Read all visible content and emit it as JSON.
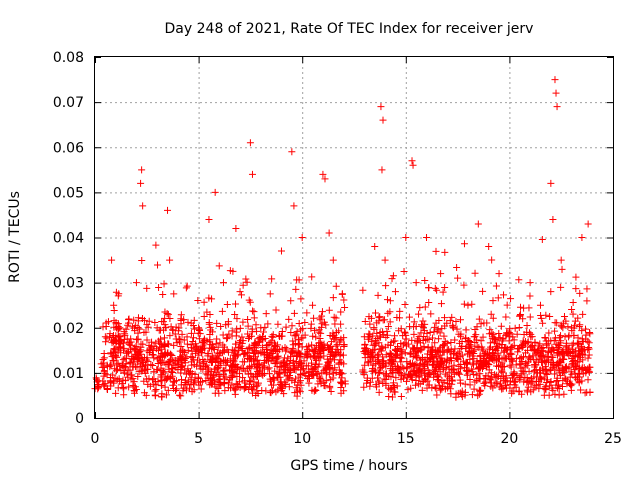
{
  "chart_data": {
    "type": "scatter",
    "title": "Day 248 of 2021, Rate Of TEC Index for receiver jerv",
    "xlabel": "GPS time / hours",
    "ylabel": "ROTI / TECUs",
    "xlim": [
      0,
      25
    ],
    "ylim": [
      0,
      0.08
    ],
    "x_ticks": [
      0,
      5,
      10,
      15,
      20,
      25
    ],
    "x_tick_labels": [
      "0",
      "5",
      "10",
      "15",
      "20",
      "25"
    ],
    "y_ticks": [
      0,
      0.01,
      0.02,
      0.03,
      0.04,
      0.05,
      0.06,
      0.07,
      0.08
    ],
    "y_tick_labels": [
      "0",
      "0.01",
      "0.02",
      "0.03",
      "0.04",
      "0.05",
      "0.06",
      "0.07",
      "0.08"
    ],
    "grid": true,
    "marker": "+",
    "color": "#ff0000",
    "gap_hours": [
      12.1,
      12.9
    ],
    "series": [
      {
        "name": "ROTI",
        "x": [
          0.0,
          0.1,
          0.3,
          0.5,
          0.8,
          0.9,
          1.2,
          1.5,
          2.0,
          2.2,
          2.25,
          2.3,
          2.8,
          3.0,
          3.5,
          3.6,
          4.0,
          4.5,
          5.0,
          5.5,
          5.8,
          6.2,
          6.8,
          7.0,
          7.5,
          7.6,
          8.0,
          8.5,
          9.0,
          9.5,
          9.6,
          10.0,
          10.5,
          11.0,
          11.1,
          11.3,
          11.5,
          12.0,
          13.0,
          13.5,
          13.8,
          13.85,
          13.9,
          14.0,
          14.5,
          15.0,
          15.3,
          15.35,
          15.5,
          16.0,
          16.5,
          17.0,
          17.5,
          18.0,
          18.5,
          19.0,
          19.5,
          20.0,
          20.5,
          21.0,
          21.5,
          22.0,
          22.1,
          22.2,
          22.25,
          22.3,
          22.5,
          23.0,
          23.5,
          23.8
        ],
        "y": [
          0.0065,
          0.008,
          0.012,
          0.018,
          0.035,
          0.025,
          0.02,
          0.012,
          0.03,
          0.052,
          0.055,
          0.047,
          0.015,
          0.02,
          0.046,
          0.035,
          0.012,
          0.015,
          0.02,
          0.044,
          0.05,
          0.03,
          0.042,
          0.028,
          0.061,
          0.054,
          0.02,
          0.015,
          0.037,
          0.059,
          0.047,
          0.04,
          0.025,
          0.054,
          0.053,
          0.041,
          0.035,
          0.012,
          0.018,
          0.038,
          0.069,
          0.055,
          0.066,
          0.035,
          0.028,
          0.04,
          0.057,
          0.056,
          0.03,
          0.04,
          0.012,
          0.015,
          0.031,
          0.025,
          0.043,
          0.038,
          0.032,
          0.018,
          0.012,
          0.03,
          0.025,
          0.052,
          0.044,
          0.075,
          0.072,
          0.069,
          0.035,
          0.02,
          0.04,
          0.043
        ]
      }
    ]
  }
}
